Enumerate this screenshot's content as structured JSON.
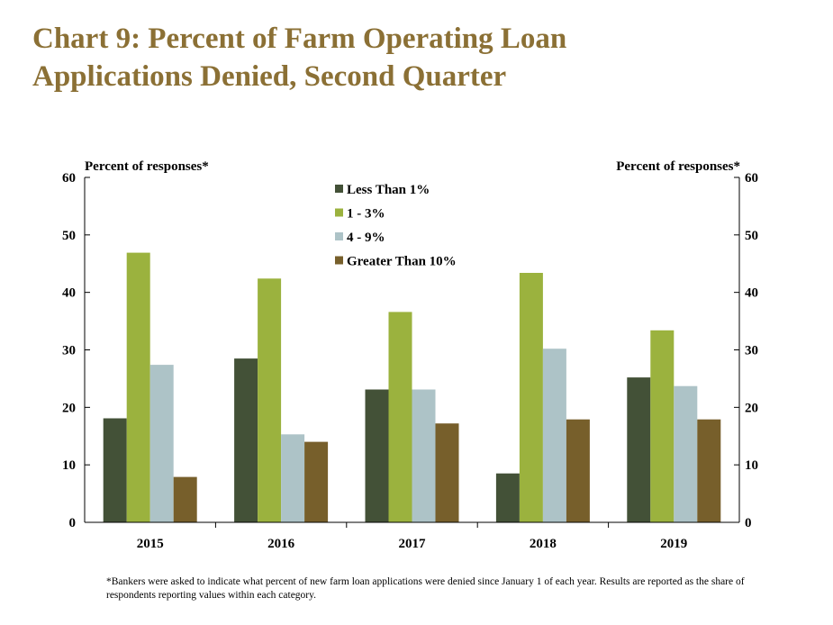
{
  "header": {
    "title_line1": "Chart 9: Percent of Farm Operating Loan",
    "title_line2": "Applications Denied, Second Quarter"
  },
  "chart_data": {
    "type": "bar",
    "categories": [
      "2015",
      "2016",
      "2017",
      "2018",
      "2019"
    ],
    "series": [
      {
        "name": "Less Than 1%",
        "color": "#435137",
        "values": [
          18.1,
          28.5,
          23.1,
          8.5,
          25.2
        ]
      },
      {
        "name": "1 - 3%",
        "color": "#9bb23e",
        "values": [
          46.9,
          42.4,
          36.6,
          43.4,
          33.4
        ]
      },
      {
        "name": "4 - 9%",
        "color": "#adc3c7",
        "values": [
          27.4,
          15.3,
          23.1,
          30.2,
          23.7
        ]
      },
      {
        "name": "Greater Than 10%",
        "color": "#775f2b",
        "values": [
          7.9,
          14.0,
          17.2,
          17.9,
          17.9
        ]
      }
    ],
    "ylabel_left": "Percent of responses*",
    "ylabel_right": "Percent of responses*",
    "ylim": [
      0,
      60
    ],
    "yticks": [
      "0",
      "10",
      "20",
      "30",
      "40",
      "50",
      "60"
    ],
    "grid": false,
    "legend_position": "top-center"
  },
  "footnote": "*Bankers were asked to indicate what percent of new farm loan applications were denied since January 1 of each year. Results are reported as the share of respondents reporting values within each category."
}
